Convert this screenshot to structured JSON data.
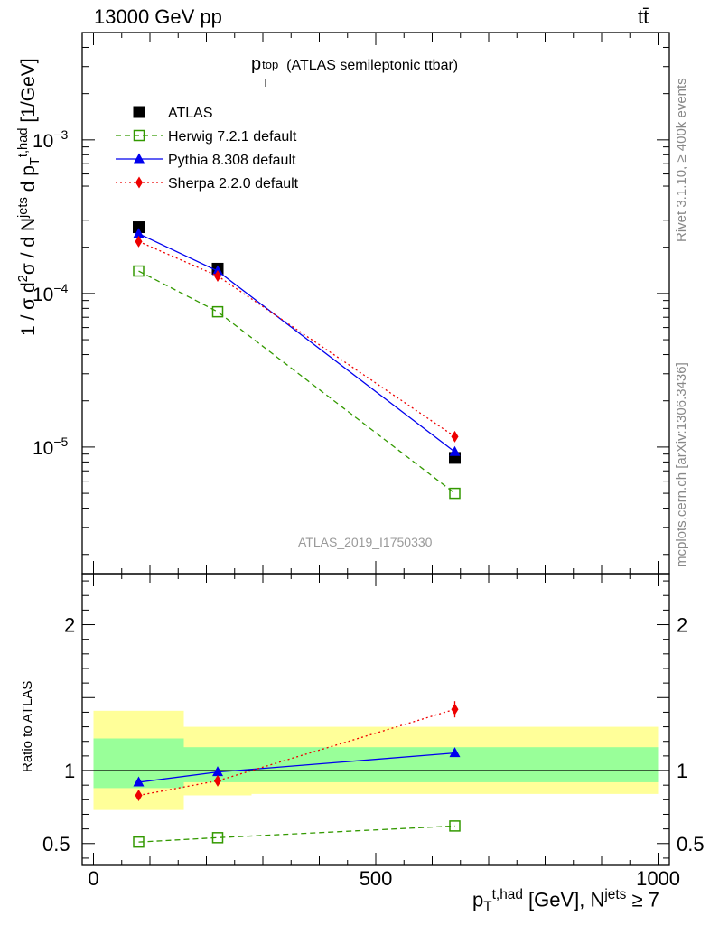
{
  "header": {
    "left": "13000 GeV pp",
    "right": "tt̄"
  },
  "side_labels": {
    "rivet": "Rivet 3.1.10, ≥ 400k events",
    "mcplots": "mcplots.cern.ch [arXiv:1306.3436]"
  },
  "plot_title": {
    "symbol": "p",
    "sup": "top",
    "sub": "T",
    "text": "(ATLAS semileptonic ttbar)"
  },
  "watermark": "ATLAS_2019_I1750330",
  "colors": {
    "atlas": "#000000",
    "herwig": "#339900",
    "pythia": "#0000ee",
    "sherpa": "#ee0000",
    "band_outer": "#ffff99",
    "band_inner": "#99ff99",
    "watermark": "#999999"
  },
  "chart_data": [
    {
      "type": "scatter",
      "panel": "main",
      "title": "p_T^top (ATLAS semileptonic ttbar)",
      "ylabel": "1 / σ d²σ / d N^jets d p_T^t,had [1/GeV]",
      "ylim": [
        1.5e-06,
        0.005
      ],
      "yscale": "log",
      "yticks": [
        {
          "value": 0.001,
          "mant": "10",
          "exp": "−3"
        },
        {
          "value": 0.0001,
          "mant": "10",
          "exp": "−4"
        },
        {
          "value": 1e-05,
          "mant": "10",
          "exp": "−5"
        }
      ],
      "legend_position": "top-left",
      "x": [
        80,
        220,
        640
      ],
      "series": [
        {
          "key": "atlas",
          "name": "ATLAS",
          "values": [
            0.00027,
            0.000145,
            8.5e-06
          ],
          "marker": "square",
          "line": "none"
        },
        {
          "key": "herwig",
          "name": "Herwig 7.2.1 default",
          "values": [
            0.00014,
            7.6e-05,
            5e-06
          ],
          "marker": "open-square",
          "line": "dashed"
        },
        {
          "key": "pythia",
          "name": "Pythia 8.308 default",
          "values": [
            0.000245,
            0.00014,
            9.3e-06
          ],
          "marker": "triangle",
          "line": "solid"
        },
        {
          "key": "sherpa",
          "name": "Sherpa 2.2.0 default",
          "values": [
            0.000218,
            0.00013,
            1.17e-05
          ],
          "marker": "diamond",
          "line": "dotted"
        }
      ]
    },
    {
      "type": "line",
      "panel": "ratio",
      "ylabel": "Ratio to ATLAS",
      "ylim": [
        0.35,
        2.35
      ],
      "yticks": [
        {
          "value": 2,
          "label": "2"
        },
        {
          "value": 1,
          "label": "1"
        },
        {
          "value": 0.5,
          "label": "0.5"
        }
      ],
      "xlabel": "p_T^t,had [GeV], N^jets ≥ 7",
      "xlim": [
        -20,
        1020
      ],
      "xticks": [
        {
          "value": 0,
          "label": "0"
        },
        {
          "value": 500,
          "label": "500"
        },
        {
          "value": 1000,
          "label": "1000"
        }
      ],
      "x": [
        80,
        220,
        640
      ],
      "reference": 1.0,
      "bands": [
        {
          "x0": 0,
          "x1": 160,
          "outer": [
            0.73,
            1.41
          ],
          "inner": [
            0.88,
            1.22
          ]
        },
        {
          "x0": 160,
          "x1": 280,
          "outer": [
            0.83,
            1.3
          ],
          "inner": [
            0.92,
            1.16
          ]
        },
        {
          "x0": 280,
          "x1": 1000,
          "outer": [
            0.84,
            1.3
          ],
          "inner": [
            0.92,
            1.16
          ]
        }
      ],
      "series": [
        {
          "key": "herwig",
          "name": "Herwig 7.2.1 default",
          "values": [
            0.51,
            0.54,
            0.62
          ]
        },
        {
          "key": "pythia",
          "name": "Pythia 8.308 default",
          "values": [
            0.92,
            0.99,
            1.12
          ]
        },
        {
          "key": "sherpa",
          "name": "Sherpa 2.2.0 default",
          "values": [
            0.83,
            0.93,
            1.42
          ]
        }
      ]
    }
  ]
}
